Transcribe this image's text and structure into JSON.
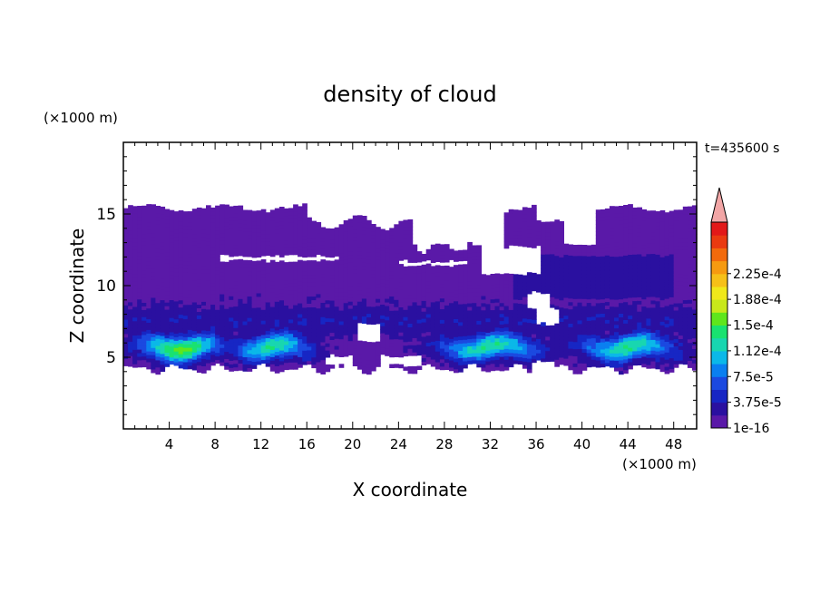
{
  "chart_data": {
    "type": "heatmap",
    "title": "density of cloud",
    "xlabel": "X coordinate",
    "ylabel": "Z coordinate",
    "x_unit": "(×1000 m)",
    "y_unit": "(×1000 m)",
    "time_label": "t=435600 s",
    "xlim": [
      0,
      50
    ],
    "ylim": [
      0,
      20
    ],
    "x_ticks": [
      "4",
      "8",
      "12",
      "16",
      "20",
      "24",
      "28",
      "32",
      "36",
      "40",
      "44",
      "48"
    ],
    "y_ticks": [
      "5",
      "10",
      "15"
    ],
    "colorbar": {
      "labels": [
        "1e-16",
        "3.75e-5",
        "7.5e-5",
        "1.12e-4",
        "1.5e-4",
        "1.88e-4",
        "2.25e-4"
      ],
      "colors": [
        "#5a19a8",
        "#2a10a0",
        "#1726c4",
        "#1b49e0",
        "#0a7ff0",
        "#0bb8e8",
        "#18d6b0",
        "#19e270",
        "#5fe61c",
        "#c8e81a",
        "#f0e81a",
        "#f6c018",
        "#f69a10",
        "#f26a0c",
        "#ea3a10",
        "#e21818"
      ],
      "extend_color": "#f2a6a6"
    },
    "cloud_layer": {
      "z_bottom": 4.2,
      "z_top": 15.3,
      "max_density_band_z": [
        5,
        7
      ],
      "peak_x_locations": [
        5,
        13,
        32,
        44
      ]
    }
  }
}
